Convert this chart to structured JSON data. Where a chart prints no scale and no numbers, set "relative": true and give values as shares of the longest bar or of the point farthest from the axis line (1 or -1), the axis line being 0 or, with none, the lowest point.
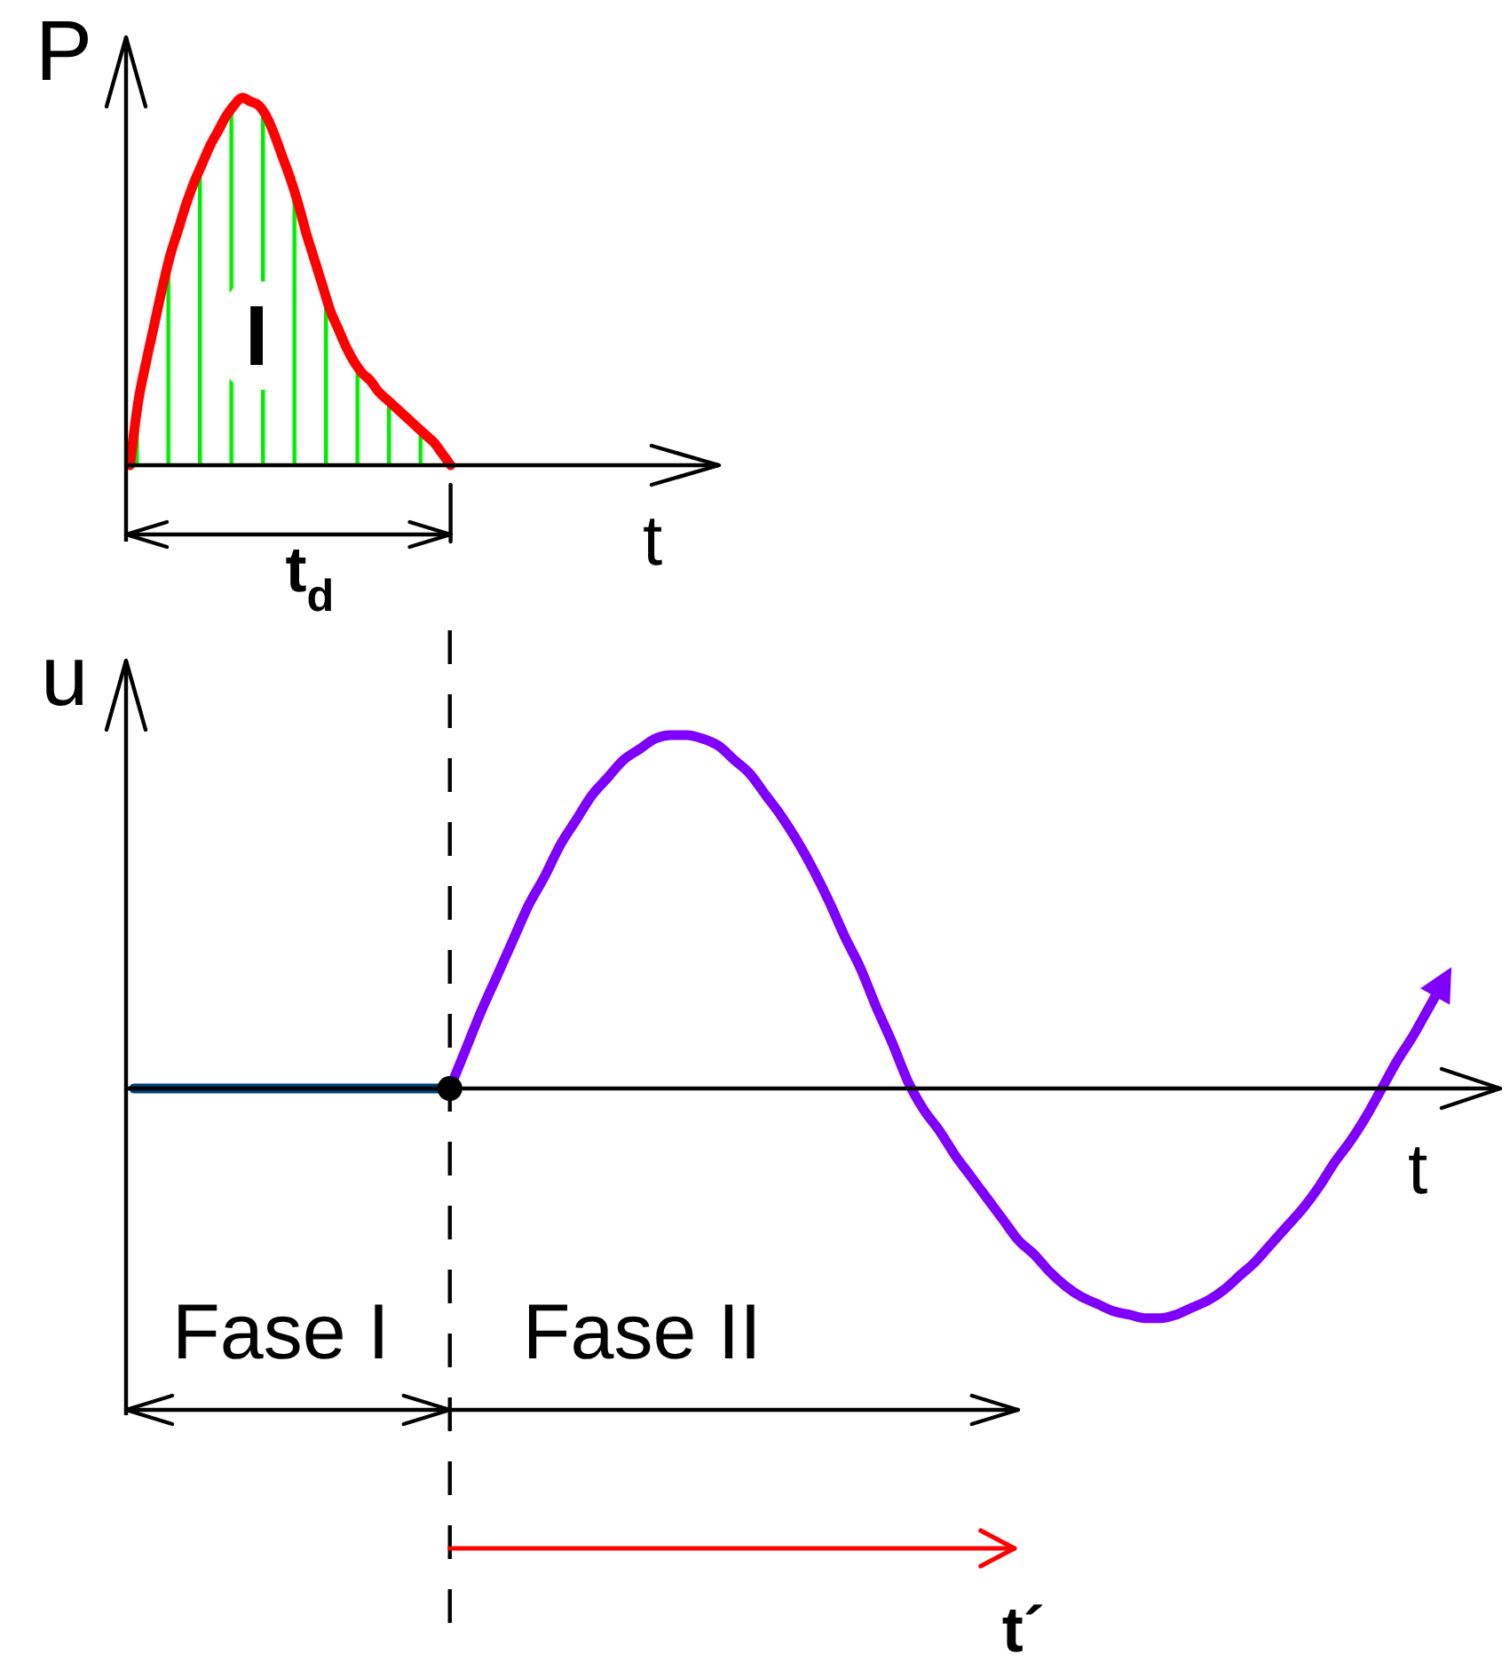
{
  "chart_data": [
    {
      "type": "area",
      "xlabel": "t",
      "ylabel": "P",
      "relative": true,
      "categories": [
        null,
        null,
        null,
        null,
        null,
        null,
        null,
        null,
        null,
        null,
        null,
        null,
        null,
        null,
        null,
        null,
        null,
        null,
        null,
        null,
        null,
        null,
        null,
        null,
        null,
        null,
        null,
        null,
        null,
        null,
        null,
        null,
        null,
        null,
        null,
        null,
        null,
        null,
        null,
        null,
        null,
        null,
        null,
        null,
        null,
        null,
        null,
        null,
        null,
        null,
        null,
        null,
        null,
        null,
        null,
        null,
        null,
        null,
        null,
        null,
        null,
        null,
        null,
        null,
        null,
        null,
        null,
        null,
        null,
        null,
        null,
        null,
        null,
        null
      ],
      "series": [
        {
          "color": "#00ee00",
          "values": [
            0,
            0.17,
            0.28,
            0.38,
            0.48,
            0.57,
            0.64,
            0.71,
            0.77,
            0.82,
            0.87,
            0.91,
            0.95,
            0.98,
            1.0,
            0.99,
            0.98,
            0.95,
            0.9,
            0.84,
            0.78,
            0.71,
            0.63,
            0.56,
            0.49,
            0.42,
            0.37,
            0.32,
            0.28,
            0.25,
            0.23,
            0.2,
            0.18,
            0.16,
            0.14,
            0.12,
            0.1,
            0.08,
            0.06,
            0.03,
            0,
            null,
            null,
            null,
            null,
            null,
            null,
            null,
            null,
            null,
            null,
            null,
            null,
            null,
            null,
            null,
            null,
            null,
            null,
            null,
            null,
            null,
            null,
            null,
            null,
            null,
            null,
            null,
            null,
            null,
            null,
            null,
            null,
            null
          ]
        }
      ],
      "annotations": [
        "I",
        "t$_{d}$"
      ]
    },
    {
      "type": "line",
      "xlabel": "t",
      "ylabel": "u",
      "relative": true,
      "categories": [
        null,
        null,
        null,
        null,
        null,
        null,
        null,
        null,
        null,
        null,
        null,
        null,
        null,
        null,
        null,
        null,
        null,
        null,
        null,
        null,
        null,
        null,
        null,
        null,
        null,
        null,
        null,
        null,
        null,
        null,
        null,
        null,
        null,
        null,
        null,
        null,
        null,
        null,
        null,
        null,
        null,
        null,
        null,
        null,
        null,
        null,
        null,
        null,
        null,
        null,
        null,
        null,
        null,
        null,
        null,
        null,
        null,
        null,
        null,
        null,
        null,
        null,
        null,
        null,
        null,
        null,
        null,
        null,
        null,
        null,
        null,
        null,
        null,
        null,
        null,
        null,
        null,
        null,
        null,
        null,
        null,
        null,
        null,
        null,
        null,
        null,
        null
      ],
      "series": [
        {
          "color": "#004080",
          "values": [
            0,
            0,
            0,
            0,
            0,
            0,
            0,
            0,
            0,
            0,
            0,
            0,
            0,
            0,
            0,
            0,
            0,
            0,
            0,
            0,
            0,
            null,
            null,
            null,
            null,
            null,
            null,
            null,
            null,
            null,
            null,
            null,
            null,
            null,
            null,
            null,
            null,
            null,
            null,
            null,
            null,
            null,
            null,
            null,
            null,
            null,
            null,
            null,
            null,
            null,
            null,
            null,
            null,
            null,
            null,
            null,
            null,
            null,
            null,
            null,
            null,
            null,
            null,
            null,
            null,
            null,
            null,
            null,
            null,
            null,
            null,
            null,
            null,
            null,
            null,
            null,
            null,
            null,
            null,
            null,
            null,
            null,
            null,
            null,
            null,
            null,
            null
          ]
        },
        {
          "color": "#7f00ff",
          "values": [
            null,
            null,
            null,
            null,
            null,
            null,
            null,
            null,
            null,
            null,
            null,
            null,
            null,
            null,
            null,
            null,
            null,
            null,
            null,
            null,
            0,
            0.11,
            0.22,
            0.32,
            0.42,
            0.52,
            0.6,
            0.69,
            0.76,
            0.83,
            0.88,
            0.93,
            0.96,
            0.99,
            1.0,
            1.0,
            0.99,
            0.97,
            0.93,
            0.89,
            0.83,
            0.77,
            0.7,
            0.62,
            0.53,
            0.43,
            0.34,
            0.23,
            0.13,
            0.02,
            -0.06,
            -0.12,
            -0.19,
            -0.25,
            -0.31,
            -0.37,
            -0.43,
            -0.47,
            -0.52,
            -0.56,
            -0.59,
            -0.61,
            -0.63,
            -0.64,
            -0.65,
            -0.65,
            -0.64,
            -0.62,
            -0.6,
            -0.57,
            -0.53,
            -0.49,
            -0.44,
            -0.39,
            -0.34,
            -0.28,
            -0.21,
            -0.15,
            -0.08,
            0,
            0.08,
            0.15,
            0.23,
            0.31,
            null,
            null,
            null
          ]
        }
      ],
      "ref_lines": [
        {
          "axis": "x",
          "color": "#000000",
          "line_style": "dashed"
        }
      ],
      "annotations": [
        "Fase I",
        "Fase II",
        "t´"
      ]
    }
  ]
}
